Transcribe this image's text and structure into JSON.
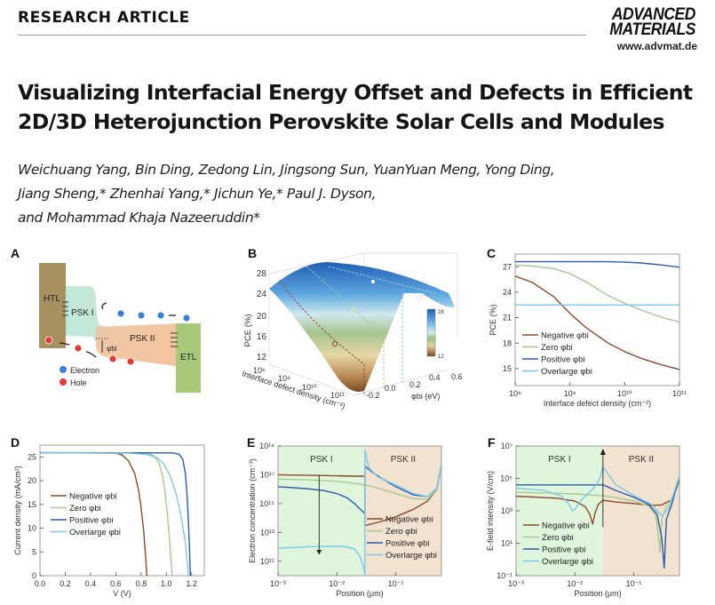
{
  "header": {
    "section_label": "RESEARCH ARTICLE",
    "journal_line1": "ADVANCED",
    "journal_line2": "MATERIALS",
    "website": "www.advmat.de"
  },
  "article": {
    "title_line1": "Visualizing Interfacial Energy Offset and Defects in Efficient",
    "title_line2": "2D/3D Heterojunction Perovskite Solar Cells and Modules",
    "authors_line1": "Weichuang Yang, Bin Ding, Zedong Lin, Jingsong Sun, YuanYuan Meng, Yong Ding,",
    "authors_line2": "Jiang Sheng,* Zhenhai Yang,* Jichun Ye,* Paul J. Dyson,",
    "authors_line3": "and Mohammad Khaja Nazeeruddin*"
  },
  "colors": {
    "negative": "#8b4a2a",
    "zero": "#a8c890",
    "positive": "#2a5cb0",
    "overlarge": "#7cc8ea",
    "psk1_bg": "#dff5dc",
    "psk2_bg": "#f1e3d0"
  },
  "figure": {
    "panel_a": {
      "letter": "A",
      "labels": {
        "htl": "HTL",
        "psk1": "PSK I",
        "psk2": "PSK II",
        "etl": "ETL",
        "phi": "φbi"
      },
      "legend": [
        {
          "label": "Electron",
          "icon": "electron-dot-icon"
        },
        {
          "label": "Hole",
          "icon": "hole-dot-icon"
        }
      ]
    },
    "panel_b": {
      "letter": "B",
      "zlabel": "PCE (%)",
      "zticks": [
        "12",
        "16",
        "20",
        "24",
        "28"
      ],
      "xlabel": "Interface defect density (cm⁻²)",
      "xticks": [
        "10⁸",
        "10⁹",
        "10¹⁰",
        "10¹¹"
      ],
      "ylabel": "φbi (eV)",
      "yticks": [
        "-0.2",
        "0.0",
        "0.2",
        "0.4",
        "0.6"
      ],
      "colorbar": {
        "min": "12",
        "max": "28"
      }
    },
    "legend_labels": [
      "Negative φbi",
      "Zero φbi",
      "Positive φbi",
      "Overlarge φbi"
    ],
    "region_labels": {
      "psk1": "PSK I",
      "psk2": "PSK II"
    }
  },
  "chart_data": [
    {
      "panel": "C",
      "type": "line",
      "title": "",
      "xlabel": "Interface defect density (cm⁻²)",
      "ylabel": "PCE (%)",
      "xscale": "log",
      "xlim": [
        100000000.0,
        100000000000.0
      ],
      "ylim": [
        13,
        28.5
      ],
      "xticks": [
        100000000.0,
        1000000000.0,
        10000000000.0,
        100000000000.0
      ],
      "xtick_labels": [
        "10⁸",
        "10⁹",
        "10¹⁰",
        "10¹¹"
      ],
      "yticks": [
        15,
        18,
        21,
        24,
        27
      ],
      "legend_position": "bottom-left",
      "x": [
        100000000.0,
        200000000.0,
        500000000.0,
        1000000000.0,
        2000000000.0,
        5000000000.0,
        10000000000.0,
        20000000000.0,
        50000000000.0,
        100000000000.0
      ],
      "series": [
        {
          "name": "Negative φbi",
          "key": "negative",
          "values": [
            25.9,
            25.2,
            23.5,
            21.5,
            19.8,
            18.0,
            17.0,
            16.2,
            15.4,
            14.9
          ]
        },
        {
          "name": "Zero φbi",
          "key": "zero",
          "values": [
            27.2,
            27.1,
            26.8,
            26.2,
            25.2,
            23.6,
            22.7,
            21.9,
            21.0,
            20.5
          ]
        },
        {
          "name": "Positive φbi",
          "key": "positive",
          "values": [
            27.6,
            27.6,
            27.6,
            27.6,
            27.6,
            27.6,
            27.55,
            27.45,
            27.2,
            26.95
          ]
        },
        {
          "name": "Overlarge φbi",
          "key": "overlarge",
          "values": [
            22.5,
            22.5,
            22.5,
            22.5,
            22.5,
            22.5,
            22.5,
            22.5,
            22.5,
            22.5
          ]
        }
      ]
    },
    {
      "panel": "D",
      "type": "line",
      "title": "",
      "xlabel": "V (V)",
      "ylabel": "Current density (mA/cm²)",
      "xlim": [
        0,
        1.3
      ],
      "ylim": [
        0,
        27.5
      ],
      "xticks": [
        0.0,
        0.2,
        0.4,
        0.6,
        0.8,
        1.0,
        1.2
      ],
      "xtick_labels": [
        "0.0",
        "0.2",
        "0.4",
        "0.6",
        "0.8",
        "1.0",
        "1.2"
      ],
      "yticks": [
        0,
        5,
        10,
        15,
        20,
        25
      ],
      "legend_position": "center-left",
      "series": [
        {
          "name": "Negative φbi",
          "key": "negative",
          "x": [
            0,
            0.6,
            0.65,
            0.7,
            0.75,
            0.78,
            0.8,
            0.82,
            0.835,
            0.845
          ],
          "values": [
            25.9,
            25.8,
            25.4,
            24.2,
            21.5,
            18.0,
            14.5,
            9.5,
            4.5,
            0
          ]
        },
        {
          "name": "Zero φbi",
          "key": "zero",
          "x": [
            0,
            0.85,
            0.9,
            0.94,
            0.97,
            0.99,
            1.01,
            1.03,
            1.045
          ],
          "values": [
            25.9,
            25.8,
            25.3,
            23.8,
            21.0,
            17.5,
            12.5,
            6.0,
            0
          ]
        },
        {
          "name": "Positive φbi",
          "key": "positive",
          "x": [
            0,
            1.05,
            1.1,
            1.13,
            1.15,
            1.165,
            1.175,
            1.185,
            1.19
          ],
          "values": [
            25.9,
            25.85,
            25.6,
            24.5,
            21.5,
            16.5,
            11.0,
            4.5,
            0
          ]
        },
        {
          "name": "Overlarge φbi",
          "key": "overlarge",
          "x": [
            0,
            0.7,
            0.85,
            0.93,
            0.98,
            1.03,
            1.08,
            1.12,
            1.15,
            1.175
          ],
          "values": [
            25.9,
            25.8,
            25.5,
            24.8,
            23.5,
            21.0,
            17.0,
            12.0,
            7.0,
            0
          ]
        }
      ]
    },
    {
      "panel": "E",
      "type": "line",
      "title": "",
      "xlabel": "Position (μm)",
      "ylabel": "Electron concentration (cm⁻³)",
      "xscale": "log",
      "yscale": "log",
      "xlim": [
        0.001,
        0.6
      ],
      "ylim": [
        10000000000.0,
        1e+19
      ],
      "xticks": [
        0.001,
        0.01,
        0.1
      ],
      "xtick_labels": [
        "10⁻³",
        "10⁻²",
        "10⁻¹"
      ],
      "yticks": [
        100000000000.0,
        10000000000000.0,
        1000000000000000.0,
        1e+17,
        1e+19
      ],
      "ytick_labels": [
        "10¹¹",
        "10¹³",
        "10¹⁵",
        "10¹⁷",
        "10¹⁹"
      ],
      "region_boundary": 0.03,
      "annotation": "downward arrow in PSK I indicating decreasing concentration with increasing φbi",
      "legend_position": "bottom-right",
      "series": [
        {
          "name": "Negative φbi",
          "key": "negative",
          "x": [
            0.001,
            0.005,
            0.01,
            0.02,
            0.03,
            0.0301,
            0.05,
            0.1,
            0.2,
            0.35,
            0.5,
            0.6
          ],
          "values": [
            1e+17,
            9e+16,
            8.5e+16,
            8e+16,
            8e+16,
            30000000000000.0,
            50000000000000.0,
            120000000000000.0,
            400000000000000.0,
            1500000000000000.0,
            1e+16,
            5e+17
          ]
        },
        {
          "name": "Zero φbi",
          "key": "zero",
          "x": [
            0.001,
            0.003,
            0.01,
            0.02,
            0.03,
            0.05,
            0.1,
            0.2,
            0.35,
            0.5,
            0.6
          ],
          "values": [
            5e+16,
            4.5e+16,
            3.5e+16,
            2.5e+16,
            2e+16,
            1.2e+16,
            5000000000000000.0,
            2200000000000000.0,
            2000000000000000.0,
            1e+16,
            5e+17
          ]
        },
        {
          "name": "Positive φbi",
          "key": "positive",
          "x": [
            0.001,
            0.003,
            0.006,
            0.01,
            0.015,
            0.02,
            0.03,
            0.0301,
            0.04,
            0.06,
            0.1,
            0.2,
            0.35,
            0.5,
            0.6
          ],
          "values": [
            1.5e+16,
            1.1e+16,
            8000000000000000.0,
            5000000000000000.0,
            2500000000000000.0,
            1000000000000000.0,
            200000000000000.0,
            4e+17,
            1.5e+17,
            5e+16,
            1.5e+16,
            4000000000000000.0,
            3000000000000000.0,
            1.2e+16,
            5e+17
          ]
        },
        {
          "name": "Overlarge φbi",
          "key": "overlarge",
          "x": [
            0.001,
            0.005,
            0.01,
            0.015,
            0.02,
            0.025,
            0.028,
            0.03,
            0.0301,
            0.035,
            0.05,
            0.1,
            0.2,
            0.35,
            0.5,
            0.6
          ],
          "values": [
            800000000000.0,
            1100000000000.0,
            1100000000000.0,
            1000000000000.0,
            700000000000.0,
            200000000000.0,
            50000000000.0,
            12000000000.0,
            5e+18,
            3e+17,
            7e+16,
            2e+16,
            5000000000000000.0,
            3000000000000000.0,
            1.2e+16,
            5e+17
          ]
        }
      ]
    },
    {
      "panel": "F",
      "type": "line",
      "title": "",
      "xlabel": "Position (μm)",
      "ylabel": "E-field intensity (V/cm)",
      "xscale": "log",
      "yscale": "log",
      "xlim": [
        0.001,
        0.6
      ],
      "ylim": [
        0.1,
        10000000.0
      ],
      "xticks": [
        0.001,
        0.01,
        0.1
      ],
      "xtick_labels": [
        "10⁻³",
        "10⁻²",
        "10⁻¹"
      ],
      "yticks": [
        0.1,
        10,
        1000,
        100000,
        10000000
      ],
      "ytick_labels": [
        "10⁻¹",
        "10¹",
        "10³",
        "10⁵",
        "10⁷"
      ],
      "region_boundary": 0.03,
      "annotation": "upward arrow at PSK I / PSK II interface",
      "legend_position": "bottom-left",
      "series": [
        {
          "name": "Negative φbi",
          "key": "negative",
          "x": [
            0.001,
            0.005,
            0.01,
            0.015,
            0.018,
            0.02,
            0.022,
            0.025,
            0.03,
            0.0301,
            0.05,
            0.1,
            0.2,
            0.3,
            0.45,
            0.6
          ],
          "values": [
            8000,
            6000,
            4000,
            1800,
            600,
            150,
            700,
            2500,
            4500,
            4500,
            3500,
            2800,
            2200,
            2300,
            5000,
            80000
          ]
        },
        {
          "name": "Zero φbi",
          "key": "zero",
          "x": [
            0.001,
            0.005,
            0.01,
            0.02,
            0.03,
            0.0301,
            0.05,
            0.1,
            0.18,
            0.24,
            0.28,
            0.3,
            0.35,
            0.45,
            0.6
          ],
          "values": [
            14000,
            12000,
            11000,
            9500,
            8500,
            8500,
            6500,
            4000,
            2000,
            500,
            3,
            300,
            1500,
            6000,
            100000
          ]
        },
        {
          "name": "Positive φbi",
          "key": "positive",
          "x": [
            0.001,
            0.01,
            0.02,
            0.03,
            0.0301,
            0.05,
            0.1,
            0.18,
            0.25,
            0.3,
            0.33,
            0.36,
            0.45,
            0.6
          ],
          "values": [
            40000,
            40000,
            40000,
            40000,
            40000,
            18000,
            7000,
            2500,
            600,
            20,
            0.3,
            300,
            3000,
            150000
          ]
        },
        {
          "name": "Overlarge φbi",
          "key": "overlarge",
          "x": [
            0.001,
            0.003,
            0.006,
            0.008,
            0.009,
            0.01,
            0.012,
            0.016,
            0.022,
            0.027,
            0.03,
            0.0301,
            0.05,
            0.1,
            0.2,
            0.3,
            0.4,
            0.6
          ],
          "values": [
            25000,
            18000,
            8000,
            2500,
            1000,
            1200,
            3500,
            10000,
            30000,
            120000,
            500000,
            500000,
            40000,
            9000,
            2500,
            500,
            1500,
            150000
          ]
        }
      ]
    }
  ]
}
